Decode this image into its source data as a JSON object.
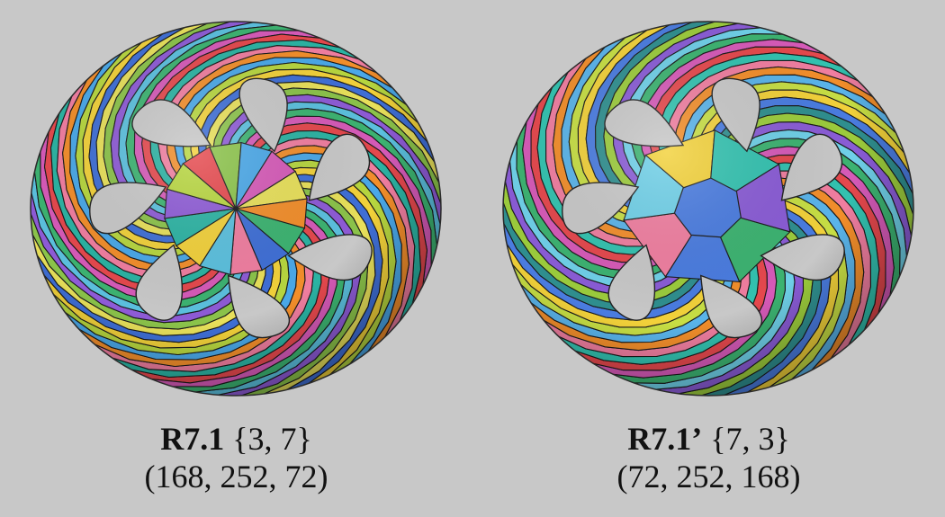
{
  "figures": [
    {
      "id": "R7.1",
      "name": "R7.1",
      "schlafli": "{3, 7}",
      "counts": "(168, 252, 72)",
      "palette": [
        "#e5484d",
        "#f28e2b",
        "#f2d13a",
        "#8bc34a",
        "#3cb371",
        "#2bb3a3",
        "#4aa8e8",
        "#3f6fd6",
        "#8e5bd6",
        "#d65ab8",
        "#f07ea0",
        "#b7d63f",
        "#e8e05a",
        "#5bc0de"
      ]
    },
    {
      "id": "R7.1p",
      "name": "R7.1’",
      "schlafli": "{7, 3}",
      "counts": "(72, 252, 168)",
      "palette": [
        "#e5484d",
        "#f28e2b",
        "#f2d13a",
        "#9ccc3c",
        "#3cb371",
        "#33c2b0",
        "#5ab4ea",
        "#4a7ce0",
        "#8a5cd6",
        "#d65ab8",
        "#f07ea0",
        "#c7de44",
        "#2f8f8f",
        "#6fd0e8"
      ]
    }
  ]
}
